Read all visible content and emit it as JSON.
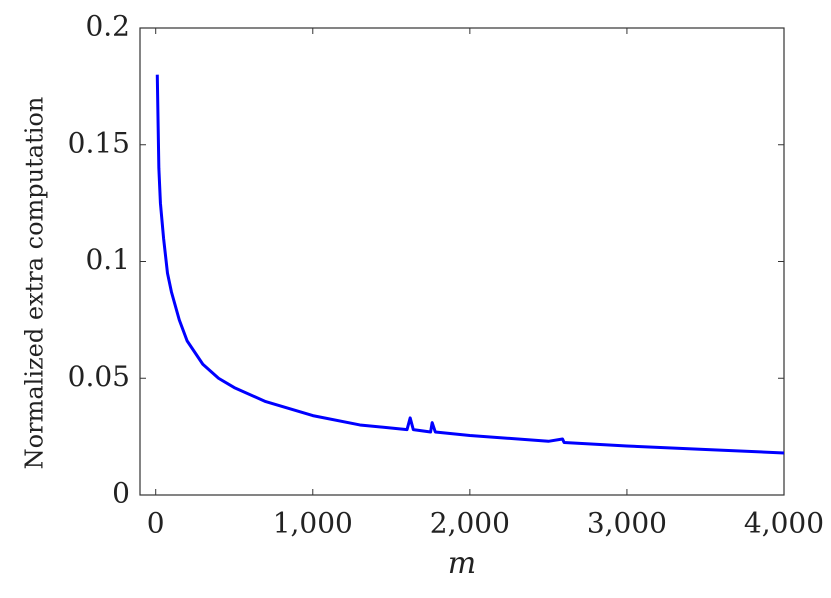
{
  "chart_data": {
    "type": "line",
    "x_label": "m",
    "y_label": "Normalized extra computation",
    "x": [
      10,
      20,
      30,
      50,
      75,
      100,
      150,
      200,
      300,
      400,
      500,
      700,
      1000,
      1300,
      1600,
      1620,
      1640,
      1750,
      1760,
      1780,
      2000,
      2500,
      2590,
      2600,
      3000,
      3500,
      4000
    ],
    "series": [
      {
        "name": "extra computation",
        "color": "#0000ff",
        "values": [
          0.18,
          0.14,
          0.125,
          0.11,
          0.095,
          0.087,
          0.075,
          0.066,
          0.056,
          0.05,
          0.046,
          0.04,
          0.034,
          0.03,
          0.028,
          0.033,
          0.028,
          0.027,
          0.031,
          0.027,
          0.0255,
          0.023,
          0.024,
          0.0225,
          0.021,
          0.0195,
          0.018
        ]
      }
    ],
    "xlim": [
      -100,
      4000
    ],
    "ylim": [
      0,
      0.2
    ],
    "xticks": [
      0,
      {
        "value": 1000,
        "label": "1,000"
      },
      {
        "value": 2000,
        "label": "2,000"
      },
      {
        "value": 3000,
        "label": "3,000"
      },
      {
        "value": 4000,
        "label": "4,000"
      }
    ],
    "yticks": [
      0,
      0.05,
      0.1,
      0.15,
      0.2
    ]
  }
}
